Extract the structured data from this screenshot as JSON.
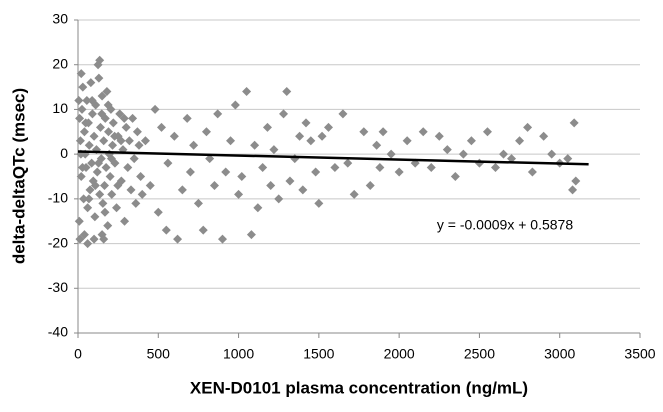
{
  "chart_data": {
    "type": "scatter",
    "x_label": "XEN-D0101 plasma concentration (ng/mL)",
    "y_label": "delta-deltaQTc (msec)",
    "annotation": "y = -0.0009x + 0.5878",
    "color": "#8c8c8c",
    "x": [
      5,
      10,
      15,
      20,
      8,
      12,
      25,
      30,
      35,
      40,
      45,
      50,
      55,
      60,
      65,
      70,
      75,
      80,
      85,
      90,
      95,
      100,
      105,
      110,
      115,
      120,
      125,
      130,
      135,
      140,
      145,
      150,
      155,
      160,
      165,
      170,
      175,
      180,
      185,
      190,
      195,
      200,
      205,
      210,
      215,
      220,
      230,
      240,
      250,
      260,
      270,
      280,
      290,
      300,
      310,
      320,
      330,
      340,
      350,
      360,
      370,
      380,
      390,
      400,
      20,
      40,
      60,
      100,
      150,
      18,
      28,
      48,
      68,
      88,
      108,
      128,
      148,
      168,
      188,
      208,
      228,
      248,
      268,
      288,
      135,
      160,
      420,
      450,
      480,
      500,
      520,
      550,
      560,
      600,
      620,
      650,
      680,
      700,
      720,
      750,
      780,
      800,
      820,
      850,
      870,
      900,
      920,
      950,
      980,
      1000,
      1020,
      1050,
      1080,
      1100,
      1120,
      1150,
      1180,
      1200,
      1220,
      1250,
      1280,
      1300,
      1320,
      1350,
      1380,
      1400,
      1420,
      1450,
      1480,
      1500,
      1520,
      1560,
      1600,
      1650,
      1680,
      1720,
      1780,
      1820,
      1860,
      1880,
      1900,
      1950,
      2000,
      2050,
      2100,
      2150,
      2200,
      2250,
      2300,
      2350,
      2400,
      2450,
      2500,
      2550,
      2600,
      2650,
      2700,
      2750,
      2800,
      2830,
      2900,
      2950,
      3000,
      3050,
      3080,
      3090,
      3100
    ],
    "values": [
      12,
      8,
      3,
      -5,
      -15,
      -19,
      10,
      15,
      -10,
      5,
      0,
      -3,
      12,
      -12,
      7,
      2,
      -8,
      16,
      -2,
      9,
      -6,
      4,
      -14,
      11,
      1,
      -4,
      20,
      17,
      -9,
      6,
      -1,
      13,
      -11,
      3,
      -7,
      8,
      -3,
      14,
      -16,
      5,
      0,
      -5,
      10,
      -9,
      2,
      7,
      -2,
      -12,
      4,
      9,
      -6,
      1,
      -15,
      6,
      -3,
      3,
      -8,
      8,
      -1,
      -11,
      5,
      2,
      -5,
      -9,
      18,
      -18,
      -20,
      -19,
      -18,
      0,
      -3,
      7,
      -10,
      12,
      -7,
      -2,
      9,
      -13,
      11,
      -1,
      4,
      -7,
      3,
      8,
      21,
      -19,
      3,
      -7,
      10,
      -13,
      6,
      -17,
      -2,
      4,
      -19,
      -8,
      8,
      -4,
      2,
      -11,
      -17,
      5,
      -1,
      -7,
      9,
      -19,
      -4,
      3,
      11,
      -9,
      -5,
      14,
      -18,
      2,
      -12,
      -3,
      6,
      -7,
      1,
      -10,
      9,
      14,
      -6,
      -1,
      4,
      -8,
      7,
      3,
      -4,
      -11,
      4,
      6,
      -3,
      9,
      -2,
      -9,
      5,
      -7,
      2,
      -3,
      5,
      0,
      -4,
      3,
      -2,
      5,
      -3,
      4,
      1,
      -5,
      0,
      3,
      -2,
      5,
      -3,
      0,
      -1,
      3,
      6,
      -4,
      4,
      0,
      -2,
      -1,
      -8,
      7,
      -6
    ],
    "trendline": {
      "x": [
        0,
        3180
      ],
      "values": [
        0.5878,
        -2.2742
      ],
      "color": "#000000"
    },
    "xlim": [
      0,
      3500
    ],
    "xticks": [
      0,
      500,
      1000,
      1500,
      2000,
      2500,
      3000,
      3500
    ],
    "ylim": [
      -40,
      30
    ],
    "yticks": [
      -40,
      -30,
      -20,
      -10,
      0,
      10,
      20,
      30
    ],
    "grid": true
  }
}
